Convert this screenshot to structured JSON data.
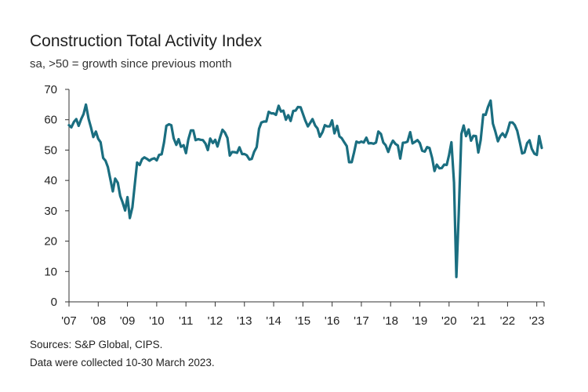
{
  "chart_data": {
    "type": "line",
    "title": "Construction Total Activity Index",
    "subtitle": "sa, >50 = growth since previous month",
    "xlabel": "",
    "ylabel": "",
    "ylim": [
      0,
      70
    ],
    "yticks": [
      0,
      10,
      20,
      30,
      40,
      50,
      60,
      70
    ],
    "xlim": [
      2007.0,
      2023.25
    ],
    "xticks": [
      {
        "value": 2007,
        "label": "'07"
      },
      {
        "value": 2008,
        "label": "'08"
      },
      {
        "value": 2009,
        "label": "'09"
      },
      {
        "value": 2010,
        "label": "'10"
      },
      {
        "value": 2011,
        "label": "'11"
      },
      {
        "value": 2012,
        "label": "'12"
      },
      {
        "value": 2013,
        "label": "'13"
      },
      {
        "value": 2014,
        "label": "'14"
      },
      {
        "value": 2015,
        "label": "'15"
      },
      {
        "value": 2016,
        "label": "'16"
      },
      {
        "value": 2017,
        "label": "'17"
      },
      {
        "value": 2018,
        "label": "'18"
      },
      {
        "value": 2019,
        "label": "'19"
      },
      {
        "value": 2020,
        "label": "'20"
      },
      {
        "value": 2021,
        "label": "'21"
      },
      {
        "value": 2022,
        "label": "'22"
      },
      {
        "value": 2023,
        "label": "'23"
      }
    ],
    "grid": false,
    "series": [
      {
        "color": "#1a6e80",
        "x": [
          2007.0,
          2007.08,
          2007.17,
          2007.25,
          2007.33,
          2007.42,
          2007.5,
          2007.58,
          2007.67,
          2007.75,
          2007.83,
          2007.92,
          2008.0,
          2008.08,
          2008.17,
          2008.25,
          2008.33,
          2008.42,
          2008.5,
          2008.58,
          2008.67,
          2008.75,
          2008.83,
          2008.92,
          2009.0,
          2009.08,
          2009.17,
          2009.25,
          2009.33,
          2009.42,
          2009.5,
          2009.58,
          2009.67,
          2009.75,
          2009.83,
          2009.92,
          2010.0,
          2010.08,
          2010.17,
          2010.25,
          2010.33,
          2010.42,
          2010.5,
          2010.58,
          2010.67,
          2010.75,
          2010.83,
          2010.92,
          2011.0,
          2011.08,
          2011.17,
          2011.25,
          2011.33,
          2011.42,
          2011.5,
          2011.58,
          2011.67,
          2011.75,
          2011.83,
          2011.92,
          2012.0,
          2012.08,
          2012.17,
          2012.25,
          2012.33,
          2012.42,
          2012.5,
          2012.58,
          2012.67,
          2012.75,
          2012.83,
          2012.92,
          2013.0,
          2013.08,
          2013.17,
          2013.25,
          2013.33,
          2013.42,
          2013.5,
          2013.58,
          2013.67,
          2013.75,
          2013.83,
          2013.92,
          2014.0,
          2014.08,
          2014.17,
          2014.25,
          2014.33,
          2014.42,
          2014.5,
          2014.58,
          2014.67,
          2014.75,
          2014.83,
          2014.92,
          2015.0,
          2015.08,
          2015.17,
          2015.25,
          2015.33,
          2015.42,
          2015.5,
          2015.58,
          2015.67,
          2015.75,
          2015.83,
          2015.92,
          2016.0,
          2016.08,
          2016.17,
          2016.25,
          2016.33,
          2016.42,
          2016.5,
          2016.58,
          2016.67,
          2016.75,
          2016.83,
          2016.92,
          2017.0,
          2017.08,
          2017.17,
          2017.25,
          2017.33,
          2017.42,
          2017.5,
          2017.58,
          2017.67,
          2017.75,
          2017.83,
          2017.92,
          2018.0,
          2018.08,
          2018.17,
          2018.25,
          2018.33,
          2018.42,
          2018.5,
          2018.58,
          2018.67,
          2018.75,
          2018.83,
          2018.92,
          2019.0,
          2019.08,
          2019.17,
          2019.25,
          2019.33,
          2019.42,
          2019.5,
          2019.58,
          2019.67,
          2019.75,
          2019.83,
          2019.92,
          2020.0,
          2020.08,
          2020.17,
          2020.25,
          2020.33,
          2020.42,
          2020.5,
          2020.58,
          2020.67,
          2020.75,
          2020.83,
          2020.92,
          2021.0,
          2021.08,
          2021.17,
          2021.25,
          2021.33,
          2021.42,
          2021.5,
          2021.58,
          2021.67,
          2021.75,
          2021.83,
          2021.92,
          2022.0,
          2022.08,
          2022.17,
          2022.25,
          2022.33,
          2022.42,
          2022.5,
          2022.58,
          2022.67,
          2022.75,
          2022.83,
          2022.92,
          2023.0,
          2023.08,
          2023.17
        ],
        "values": [
          58.2,
          57.5,
          59.3,
          60.2,
          58.0,
          60.3,
          61.9,
          65.0,
          60.3,
          57.5,
          54.3,
          56.1,
          53.7,
          52.6,
          47.4,
          46.5,
          44.4,
          40.1,
          36.4,
          40.6,
          39.2,
          34.9,
          32.9,
          30.1,
          34.5,
          27.6,
          31.2,
          38.6,
          45.9,
          45.1,
          47.0,
          47.6,
          47.1,
          46.5,
          47.0,
          47.3,
          46.6,
          48.4,
          48.6,
          52.5,
          58.0,
          58.5,
          58.2,
          53.9,
          51.7,
          53.6,
          51.1,
          51.6,
          49.0,
          53.5,
          56.5,
          56.5,
          53.3,
          53.6,
          53.4,
          53.3,
          52.1,
          50.0,
          53.8,
          52.3,
          53.4,
          51.2,
          54.3,
          56.7,
          55.8,
          54.0,
          48.2,
          49.4,
          49.3,
          49.1,
          50.9,
          48.7,
          48.7,
          48.3,
          46.9,
          47.1,
          49.4,
          51.0,
          57.0,
          59.1,
          59.4,
          59.4,
          62.6,
          62.1,
          62.1,
          61.6,
          64.6,
          62.7,
          63.0,
          60.0,
          61.5,
          59.6,
          62.9,
          63.0,
          64.2,
          64.1,
          62.0,
          59.8,
          57.8,
          59.0,
          60.2,
          58.1,
          57.1,
          54.4,
          55.9,
          58.2,
          57.8,
          57.8,
          59.8,
          55.5,
          58.0,
          54.5,
          53.9,
          52.5,
          51.3,
          46.0,
          46.0,
          49.2,
          52.8,
          52.4,
          52.8,
          52.5,
          54.1,
          52.2,
          52.3,
          52.1,
          52.5,
          56.1,
          55.3,
          52.5,
          51.6,
          49.4,
          51.6,
          53.1,
          52.0,
          51.5,
          47.2,
          52.4,
          52.5,
          52.8,
          55.9,
          52.2,
          52.7,
          53.3,
          52.3,
          49.8,
          49.5,
          51.0,
          50.7,
          47.4,
          43.1,
          45.2,
          44.0,
          44.1,
          45.2,
          45.1,
          48.4,
          52.6,
          39.3,
          8.2,
          28.9,
          55.3,
          58.1,
          54.6,
          56.8,
          53.1,
          54.7,
          54.6,
          49.2,
          53.3,
          61.7,
          61.6,
          64.2,
          66.3,
          58.7,
          56.2,
          52.9,
          54.6,
          55.5,
          54.3,
          56.3,
          59.1,
          59.1,
          58.2,
          56.4,
          52.6,
          48.9,
          49.2,
          52.3,
          53.2,
          50.4,
          48.8,
          48.4,
          54.6,
          50.7
        ]
      }
    ]
  },
  "footer": {
    "sources": "Sources: S&P Global, CIPS.",
    "collected": "Data were collected 10-30 March 2023."
  }
}
